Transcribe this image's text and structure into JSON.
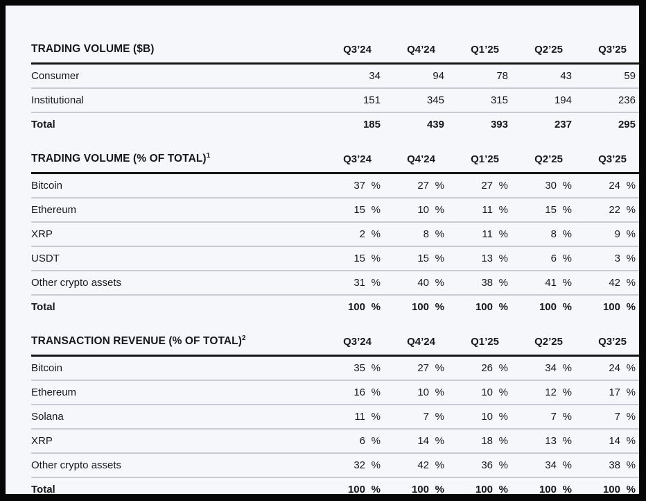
{
  "page": {
    "frame_color": "#070707",
    "background_color": "#f5f7fb",
    "text_color": "#16181d",
    "heavy_rule_color": "#141414",
    "light_rule_color": "#c8cbd2"
  },
  "columns": [
    "Q3’24",
    "Q4’24",
    "Q1’25",
    "Q2’25",
    "Q3’25"
  ],
  "tables": [
    {
      "title": "TRADING VOLUME ($B)",
      "footnote_mark": "",
      "unit_suffix": "",
      "rows": [
        {
          "label": "Consumer",
          "values": [
            "34",
            "94",
            "78",
            "43",
            "59"
          ],
          "total": false
        },
        {
          "label": "Institutional",
          "values": [
            "151",
            "345",
            "315",
            "194",
            "236"
          ],
          "total": false
        },
        {
          "label": "Total",
          "values": [
            "185",
            "439",
            "393",
            "237",
            "295"
          ],
          "total": true
        }
      ]
    },
    {
      "title": "TRADING VOLUME (% OF TOTAL)",
      "footnote_mark": "1",
      "unit_suffix": "%",
      "rows": [
        {
          "label": "Bitcoin",
          "values": [
            "37",
            "27",
            "27",
            "30",
            "24"
          ],
          "total": false
        },
        {
          "label": "Ethereum",
          "values": [
            "15",
            "10",
            "11",
            "15",
            "22"
          ],
          "total": false
        },
        {
          "label": "XRP",
          "values": [
            "2",
            "8",
            "11",
            "8",
            "9"
          ],
          "total": false
        },
        {
          "label": "USDT",
          "values": [
            "15",
            "15",
            "13",
            "6",
            "3"
          ],
          "total": false
        },
        {
          "label": "Other crypto assets",
          "values": [
            "31",
            "40",
            "38",
            "41",
            "42"
          ],
          "total": false
        },
        {
          "label": "Total",
          "values": [
            "100",
            "100",
            "100",
            "100",
            "100"
          ],
          "total": true
        }
      ]
    },
    {
      "title": "TRANSACTION REVENUE (% OF TOTAL)",
      "footnote_mark": "2",
      "unit_suffix": "%",
      "rows": [
        {
          "label": "Bitcoin",
          "values": [
            "35",
            "27",
            "26",
            "34",
            "24"
          ],
          "total": false
        },
        {
          "label": "Ethereum",
          "values": [
            "16",
            "10",
            "10",
            "12",
            "17"
          ],
          "total": false
        },
        {
          "label": "Solana",
          "values": [
            "11",
            "7",
            "10",
            "7",
            "7"
          ],
          "total": false
        },
        {
          "label": "XRP",
          "values": [
            "6",
            "14",
            "18",
            "13",
            "14"
          ],
          "total": false
        },
        {
          "label": "Other crypto assets",
          "values": [
            "32",
            "42",
            "36",
            "34",
            "38"
          ],
          "total": false
        },
        {
          "label": "Total",
          "values": [
            "100",
            "100",
            "100",
            "100",
            "100"
          ],
          "total": true
        }
      ]
    }
  ]
}
